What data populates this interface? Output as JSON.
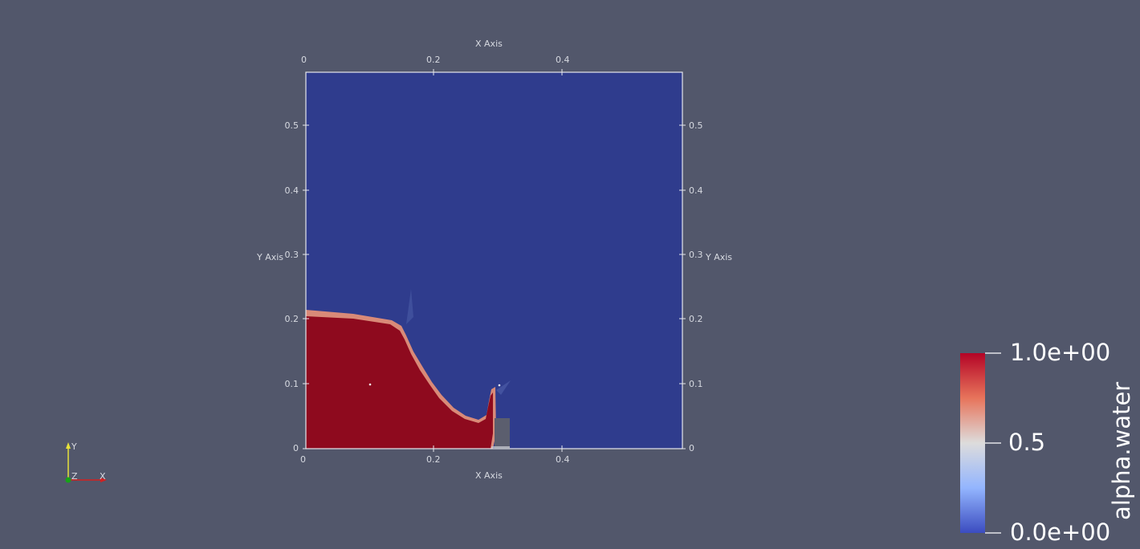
{
  "viewport": {
    "background": "#52576b",
    "domain_color": "#2f3c8d",
    "water_color": "#8e0a1e",
    "obstacle_color": "#5b5e6e"
  },
  "axes": {
    "top_title": "X Axis",
    "bottom_title": "X Axis",
    "left_title": "Y Axis",
    "right_title": "Y Axis",
    "x_ticks": [
      "0",
      "0.2",
      "0.4"
    ],
    "y_ticks": [
      "0",
      "0.1",
      "0.2",
      "0.3",
      "0.4",
      "0.5"
    ]
  },
  "orientation": {
    "y_label": "Y",
    "z_label": "Z",
    "x_label": "X",
    "y_color": "#e8e23a",
    "x_color": "#d42020",
    "z_color": "#17a317"
  },
  "colorbar": {
    "title": "alpha.water",
    "max_label": "1.0e+00",
    "mid_label": "0.5",
    "min_label": "0.0e+00",
    "colors": [
      "#b40426",
      "#e7745b",
      "#dddcdc",
      "#93b5fe",
      "#3b4cc0"
    ]
  }
}
